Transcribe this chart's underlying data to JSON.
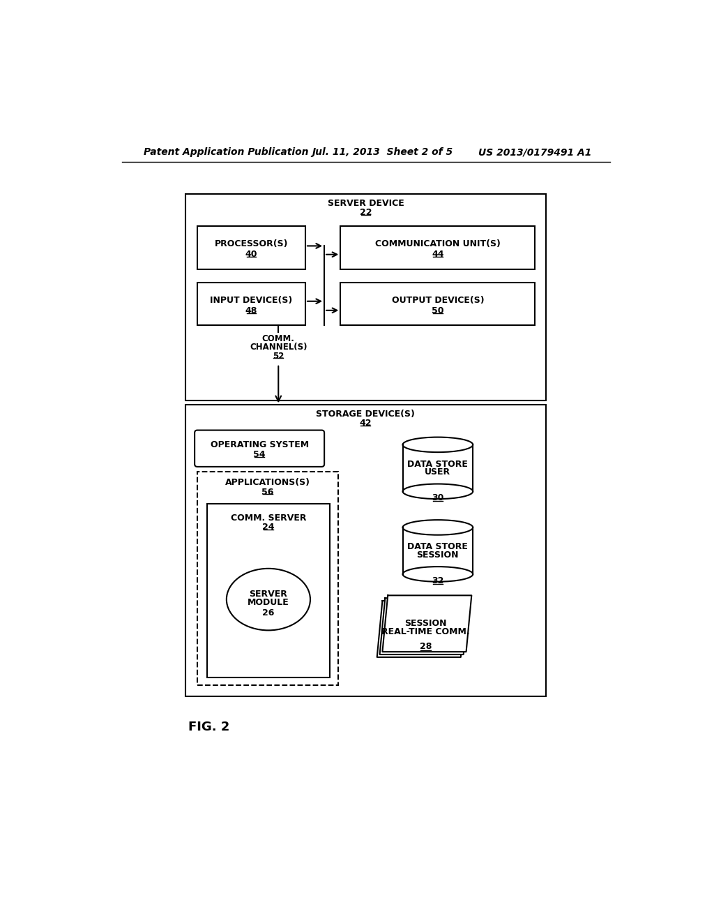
{
  "bg_color": "#ffffff",
  "header_text": "Patent Application Publication",
  "header_date": "Jul. 11, 2013  Sheet 2 of 5",
  "header_patent": "US 2013/0179491 A1",
  "fig_label": "FIG. 2",
  "server_device_label": "SERVER DEVICE",
  "server_device_num": "22",
  "storage_device_label": "STORAGE DEVICE(S)",
  "storage_device_num": "42",
  "processor_label": "PROCESSOR(S)",
  "processor_num": "40",
  "comm_unit_label": "COMMUNICATION UNIT(S)",
  "comm_unit_num": "44",
  "input_device_label": "INPUT DEVICE(S)",
  "input_device_num": "48",
  "output_device_label": "OUTPUT DEVICE(S)",
  "output_device_num": "50",
  "comm_channel_label1": "COMM.",
  "comm_channel_label2": "CHANNEL(S)",
  "comm_channel_num": "52",
  "os_label": "OPERATING SYSTEM",
  "os_num": "54",
  "apps_label": "APPLICATIONS(S)",
  "apps_num": "56",
  "comm_server_label": "COMM. SERVER",
  "comm_server_num": "24",
  "server_module_label": "SERVER\nMODULE",
  "server_module_num": "26",
  "user_data_store_lines": [
    "USER",
    "DATA STORE"
  ],
  "user_data_store_num": "30",
  "session_data_store_lines": [
    "SESSION",
    "DATA STORE"
  ],
  "session_data_store_num": "32",
  "realtime_comm_lines": [
    "REAL-TIME COMM.",
    "SESSION"
  ],
  "realtime_comm_num": "28"
}
